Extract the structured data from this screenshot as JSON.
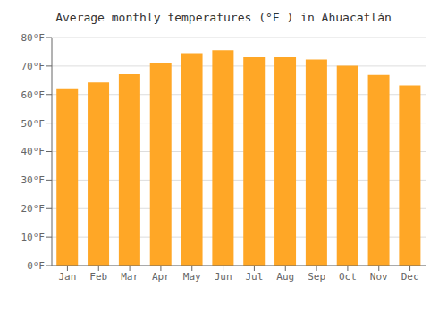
{
  "chart_data": {
    "type": "bar",
    "title": "Average monthly temperatures (°F ) in Ahuacatlán",
    "categories": [
      "Jan",
      "Feb",
      "Mar",
      "Apr",
      "May",
      "Jun",
      "Jul",
      "Aug",
      "Sep",
      "Oct",
      "Nov",
      "Dec"
    ],
    "values": [
      62.2,
      64.2,
      67.1,
      71.2,
      74.5,
      75.5,
      73.1,
      73.1,
      72.3,
      70.1,
      66.9,
      63.2
    ],
    "color": "#FFA726",
    "ylim": [
      0,
      80
    ],
    "yticks": [
      {
        "value": 0,
        "label": "0°F"
      },
      {
        "value": 10,
        "label": "10°F"
      },
      {
        "value": 20,
        "label": "20°F"
      },
      {
        "value": 30,
        "label": "30°F"
      },
      {
        "value": 40,
        "label": "40°F"
      },
      {
        "value": 50,
        "label": "50°F"
      },
      {
        "value": 60,
        "label": "60°F"
      },
      {
        "value": 70,
        "label": "70°F"
      },
      {
        "value": 80,
        "label": "80°F"
      }
    ],
    "grid": true
  }
}
